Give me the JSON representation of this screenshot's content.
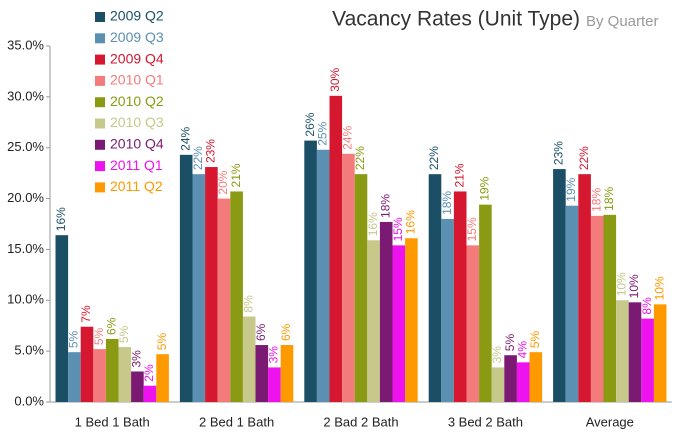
{
  "chart_data": {
    "type": "bar",
    "title": "Vacancy Rates (Unit Type)",
    "subtitle": "By Quarter",
    "categories": [
      "1 Bed 1 Bath",
      "2 Bed 1 Bath",
      "2 Bad 2 Bath",
      "3 Bed 2 Bath",
      "Average"
    ],
    "series": [
      {
        "name": "2009 Q2",
        "color": "#1b4f66",
        "values": [
          16.4,
          24.3,
          25.7,
          22.4,
          22.9
        ],
        "value_labels": [
          "16%",
          "24%",
          "26%",
          "22%",
          "23%"
        ]
      },
      {
        "name": "2009 Q3",
        "color": "#5b90b2",
        "values": [
          4.9,
          22.4,
          24.8,
          18.0,
          19.3
        ],
        "value_labels": [
          "5%",
          "22%",
          "25%",
          "18%",
          "19%"
        ]
      },
      {
        "name": "2009 Q4",
        "color": "#d5172f",
        "values": [
          7.4,
          23.1,
          30.1,
          20.7,
          22.4
        ],
        "value_labels": [
          "7%",
          "23%",
          "30%",
          "21%",
          "22%"
        ]
      },
      {
        "name": "2010 Q1",
        "color": "#f47b7b",
        "values": [
          5.2,
          20.0,
          24.4,
          15.4,
          18.3
        ],
        "value_labels": [
          "5%",
          "20%",
          "24%",
          "15%",
          "18%"
        ]
      },
      {
        "name": "2010 Q2",
        "color": "#8a9a12",
        "values": [
          6.2,
          20.7,
          22.4,
          19.4,
          18.4
        ],
        "value_labels": [
          "6%",
          "21%",
          "22%",
          "19%",
          "18%"
        ]
      },
      {
        "name": "2010 Q3",
        "color": "#c6c98a",
        "values": [
          5.4,
          8.4,
          15.9,
          3.4,
          10.0
        ],
        "value_labels": [
          "5%",
          "8%",
          "16%",
          "3%",
          "10%"
        ]
      },
      {
        "name": "2010 Q4",
        "color": "#7b1a72",
        "values": [
          3.0,
          5.6,
          17.7,
          4.6,
          9.8
        ],
        "value_labels": [
          "3%",
          "6%",
          "18%",
          "5%",
          "10%"
        ]
      },
      {
        "name": "2011 Q1",
        "color": "#ee12ee",
        "values": [
          1.6,
          3.4,
          15.4,
          3.9,
          8.2
        ],
        "value_labels": [
          "2%",
          "3%",
          "15%",
          "4%",
          "8%"
        ]
      },
      {
        "name": "2011 Q2",
        "color": "#ff9900",
        "values": [
          4.7,
          5.6,
          16.1,
          4.9,
          9.6
        ],
        "value_labels": [
          "5%",
          "6%",
          "16%",
          "5%",
          "10%"
        ]
      }
    ],
    "ylim": [
      0,
      35
    ],
    "yticks": [
      {
        "value": 0,
        "label": "0.0%"
      },
      {
        "value": 5,
        "label": "5.0%"
      },
      {
        "value": 10,
        "label": "10.0%"
      },
      {
        "value": 15,
        "label": "15.0%"
      },
      {
        "value": 20,
        "label": "20.0%"
      },
      {
        "value": 25,
        "label": "25.0%"
      },
      {
        "value": 30,
        "label": "30.0%"
      },
      {
        "value": 35,
        "label": "35.0%"
      }
    ],
    "legend": "top-left"
  }
}
